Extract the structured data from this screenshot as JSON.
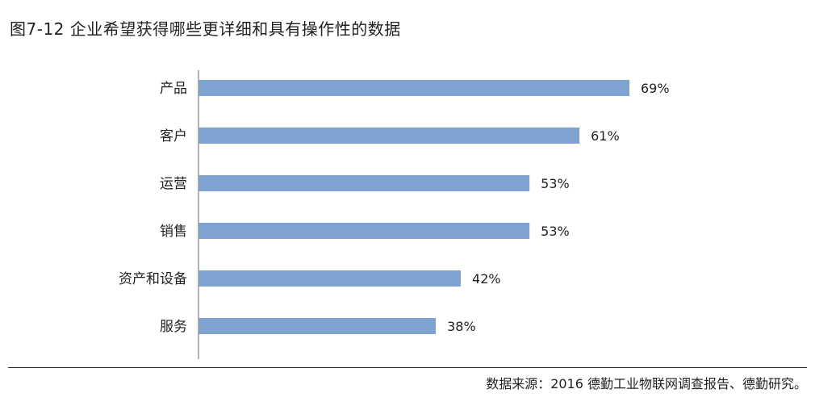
{
  "figure": {
    "title": "图7-12  企业希望获得哪些更详细和具有操作性的数据",
    "source": "数据来源：2016 德勤工业物联网调查报告、德勤研究。"
  },
  "colors": {
    "bar": "#7ea3d0",
    "axis": "#9a9a9a",
    "text": "#231f20"
  },
  "chart_data": {
    "type": "bar",
    "orientation": "horizontal",
    "title": "图7-12  企业希望获得哪些更详细和具有操作性的数据",
    "xlabel": "",
    "ylabel": "",
    "grid": false,
    "legend": "none",
    "xlim": [
      0,
      100
    ],
    "categories": [
      "产品",
      "客户",
      "运营",
      "销售",
      "资产和设备",
      "服务"
    ],
    "values": [
      69,
      61,
      53,
      53,
      42,
      38
    ],
    "value_labels": [
      "69%",
      "61%",
      "53%",
      "53%",
      "42%",
      "38%"
    ]
  }
}
